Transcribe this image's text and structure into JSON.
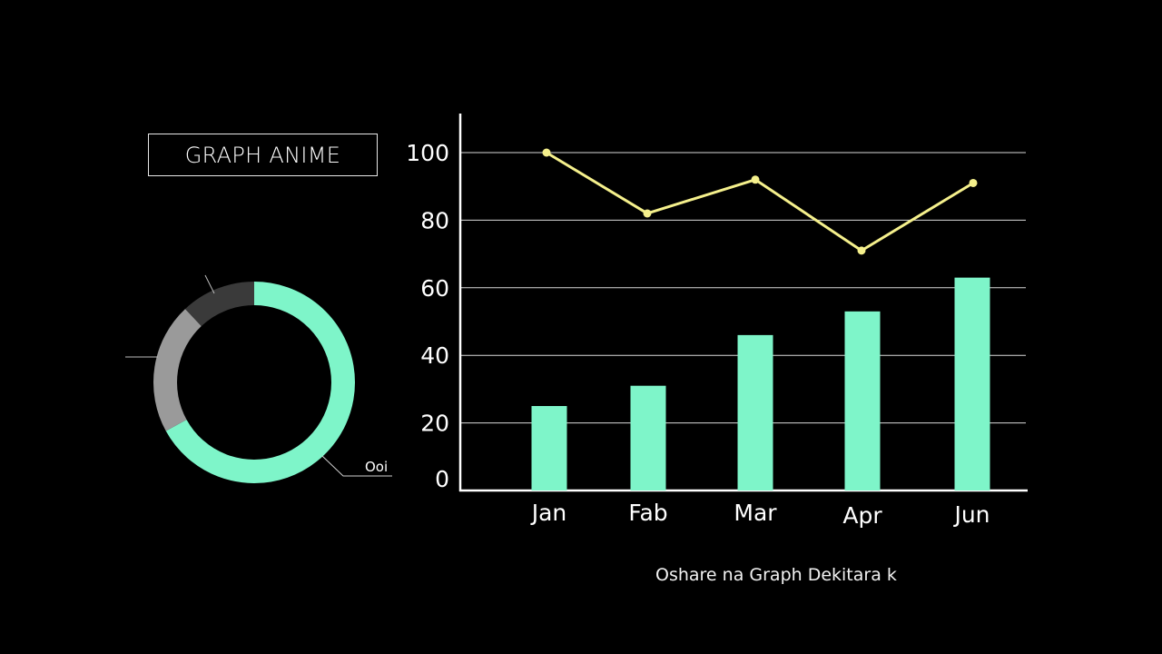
{
  "title": "GRAPH ANIME",
  "caption": "Oshare na Graph Dekitara k",
  "colors": {
    "bar": "#7ef5c9",
    "line": "#f5f08c",
    "grid": "#d9d9d9",
    "axis": "#ffffff",
    "donut_dark": "#3a3a3a",
    "donut_grey": "#9a9a9a"
  },
  "chart_data": [
    {
      "type": "bar",
      "title": "",
      "categories": [
        "Jan",
        "Fab",
        "Mar",
        "Apr",
        "Jun"
      ],
      "series": [
        {
          "name": "bars",
          "type": "bar",
          "values": [
            25,
            31,
            46,
            53,
            63
          ]
        },
        {
          "name": "line",
          "type": "line",
          "values": [
            100,
            82,
            92,
            71,
            91
          ]
        }
      ],
      "yticks": [
        0,
        20,
        40,
        60,
        80,
        100
      ],
      "ylim": [
        0,
        110
      ],
      "grid": true
    },
    {
      "type": "pie",
      "donut": true,
      "labels": [
        "Ooi",
        "",
        ""
      ],
      "values": [
        67,
        21,
        12
      ]
    }
  ]
}
